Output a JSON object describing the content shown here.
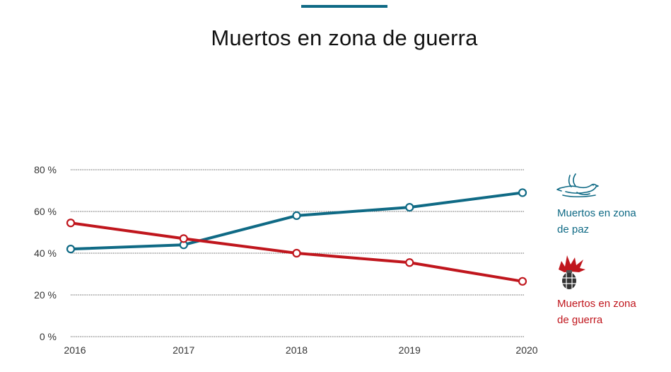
{
  "chart_data": {
    "type": "line",
    "title": "Muertos en zona de guerra",
    "xlabel": "",
    "ylabel": "",
    "categories": [
      "2016",
      "2017",
      "2018",
      "2019",
      "2020"
    ],
    "y_ticks": [
      "0 %",
      "20 %",
      "40 %",
      "60 %",
      "80 %"
    ],
    "ylim": [
      0,
      80
    ],
    "grid": true,
    "legend_position": "right",
    "series": [
      {
        "name": "Muertos en zona de paz",
        "color": "#0f6a85",
        "icon": "dove-icon",
        "values": [
          42,
          44,
          58,
          62,
          69
        ]
      },
      {
        "name": "Muertos en zona de guerra",
        "color": "#c0161d",
        "icon": "bomb-explosion-icon",
        "values": [
          54.5,
          47,
          40,
          35.5,
          26.5
        ]
      }
    ]
  },
  "legend": {
    "peace_line1": "Muertos en zona",
    "peace_line2": "de paz",
    "war_line1": "Muertos en zona",
    "war_line2": "de guerra"
  }
}
